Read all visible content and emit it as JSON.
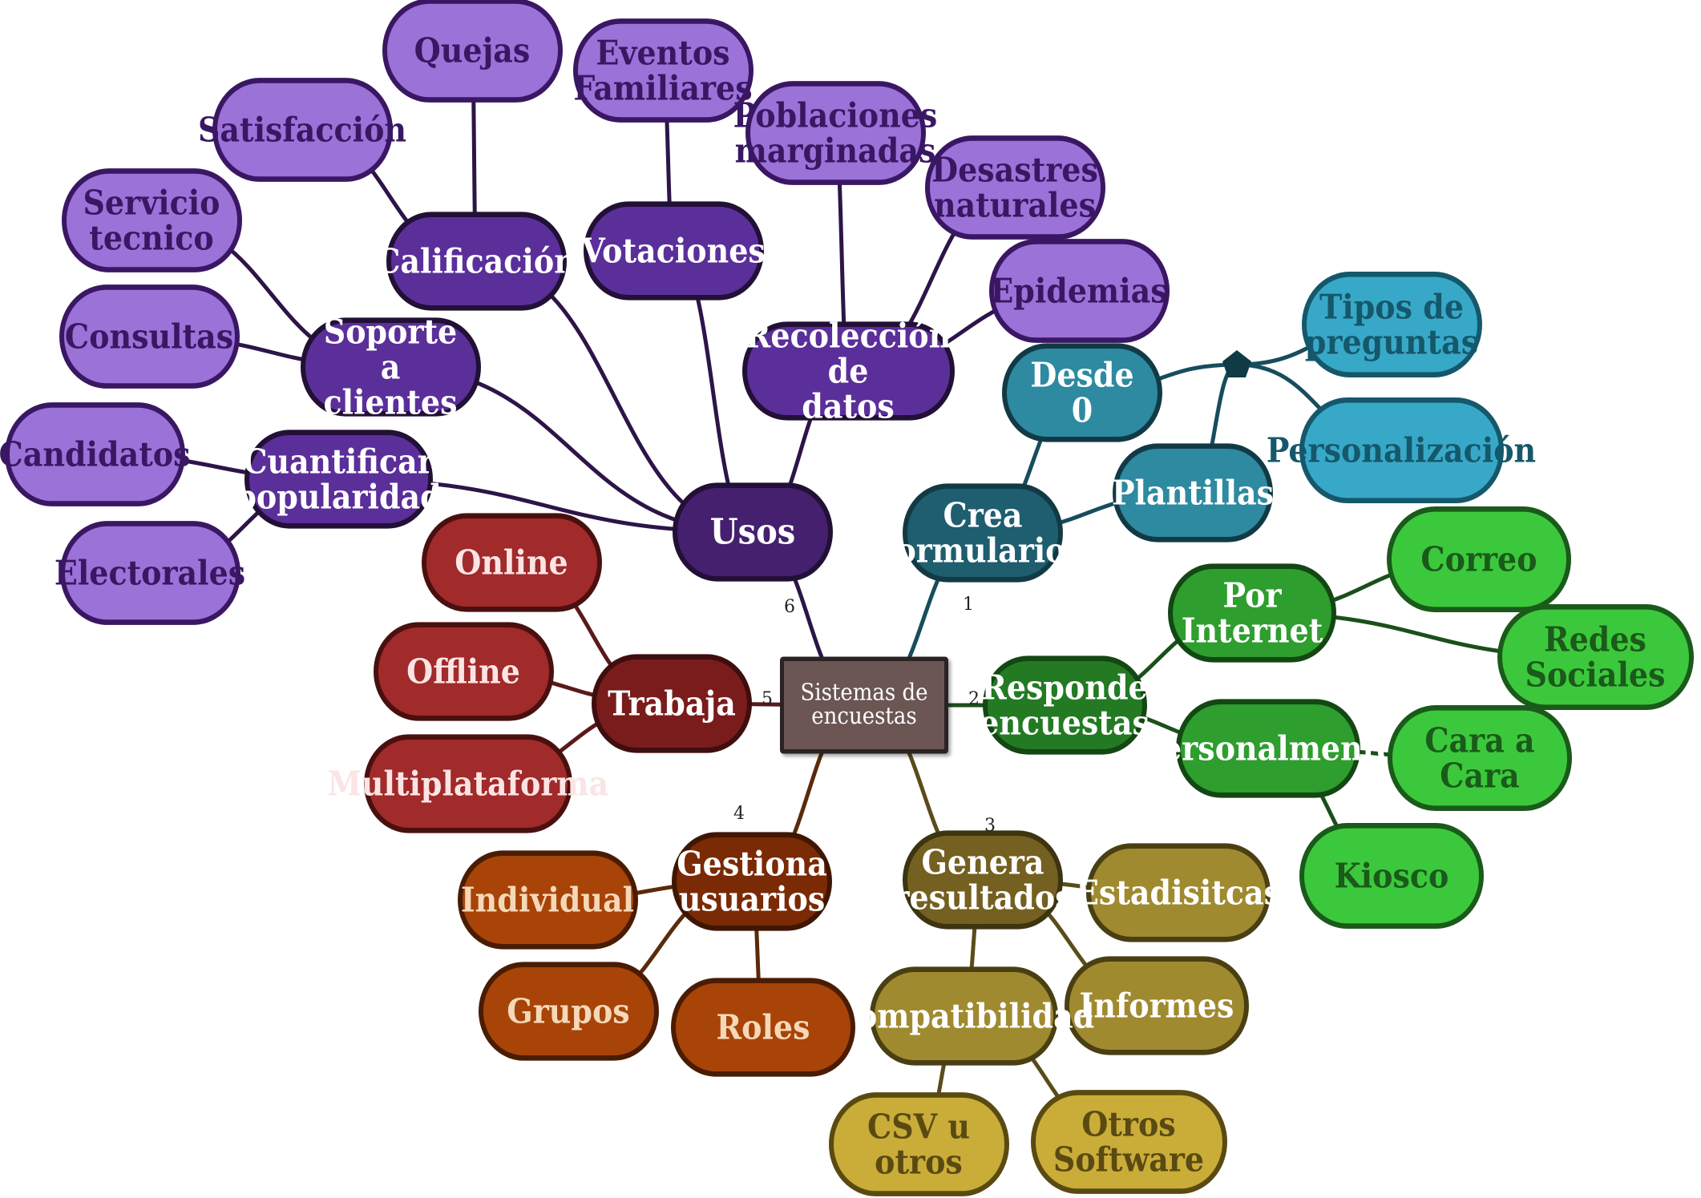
{
  "root": {
    "label": "Sistemas de\nencuestas"
  },
  "branches": {
    "crea": {
      "label": "Crea\nformularios",
      "number": "1"
    },
    "desde": {
      "label": "Desde 0"
    },
    "plantillas": {
      "label": "Plantillas"
    },
    "tipos": {
      "label": "Tipos de\npreguntas"
    },
    "personal": {
      "label": "Personalización"
    },
    "responde": {
      "label": "Responde\nencuestas",
      "number": "2"
    },
    "internet": {
      "label": "Por Internet"
    },
    "correo": {
      "label": "Correo"
    },
    "redes": {
      "label": "Redes Sociales"
    },
    "personalmente": {
      "label": "Personalmente"
    },
    "cara": {
      "label": "Cara a Cara"
    },
    "kiosco": {
      "label": "Kiosco"
    },
    "genera": {
      "label": "Genera\nresultados",
      "number": "3"
    },
    "estad": {
      "label": "Estadisitcas"
    },
    "informes": {
      "label": "Informes"
    },
    "compat": {
      "label": "Compatibilidad"
    },
    "csv": {
      "label": "CSV u otros"
    },
    "otros": {
      "label": "Otros Software"
    },
    "gestiona": {
      "label": "Gestiona\nusuarios",
      "number": "4"
    },
    "individual": {
      "label": "Individual"
    },
    "grupos": {
      "label": "Grupos"
    },
    "roles": {
      "label": "Roles"
    },
    "trabaja": {
      "label": "Trabaja",
      "number": "5"
    },
    "online": {
      "label": "Online"
    },
    "offline": {
      "label": "Offline"
    },
    "multi": {
      "label": "Multiplataforma"
    },
    "usos": {
      "label": "Usos",
      "number": "6"
    },
    "cuantificar": {
      "label": "Cuantificar\npopularidad"
    },
    "candidatos": {
      "label": "Candidatos"
    },
    "electorales": {
      "label": "Electorales"
    },
    "soporte": {
      "label": "Soporte a\nclientes"
    },
    "consultas": {
      "label": "Consultas"
    },
    "servicio": {
      "label": "Servicio\ntecnico"
    },
    "calif": {
      "label": "Calificación"
    },
    "satisf": {
      "label": "Satisfacción"
    },
    "quejas": {
      "label": "Quejas"
    },
    "votaciones": {
      "label": "Votaciones"
    },
    "eventos": {
      "label": "Eventos\nFamiliares"
    },
    "recoleccion": {
      "label": "Recolección de\ndatos"
    },
    "poblaciones": {
      "label": "Poblaciones\nmarginadas"
    },
    "desastres": {
      "label": "Desastres\nnaturales"
    },
    "epidemias": {
      "label": "Epidemias"
    }
  },
  "colors": {
    "root": "#6b5654",
    "usos_main": "#45206e",
    "usos_mid": "#5b2f9a",
    "usos_leaf": "#9b72d8",
    "usos_text_leaf": "#3a1763",
    "usos_line": "#2d1547",
    "crea_main": "#1e5e6f",
    "crea_mid": "#2d8aa0",
    "crea_leaf": "#38a8c8",
    "crea_text_leaf": "#15586b",
    "crea_line": "#174d5c",
    "responde_main": "#237a23",
    "responde_mid": "#2e9e2e",
    "responde_leaf": "#3cc83c",
    "responde_text_leaf": "#1a5a1a",
    "responde_line": "#1b4f1b",
    "genera_main": "#746020",
    "genera_mid": "#a08a30",
    "genera_leaf": "#c9ad38",
    "genera_text_leaf": "#5a4a12",
    "genera_line": "#5a4c1a",
    "gestiona_main": "#7a2a05",
    "gestiona_leaf": "#a84408",
    "gestiona_text": "#f5d8b8",
    "gestiona_line": "#5a2a0a",
    "trabaja_main": "#7a1c1c",
    "trabaja_leaf": "#a12a2a",
    "trabaja_text": "#fbe4e4",
    "trabaja_line": "#5a1a1a"
  }
}
